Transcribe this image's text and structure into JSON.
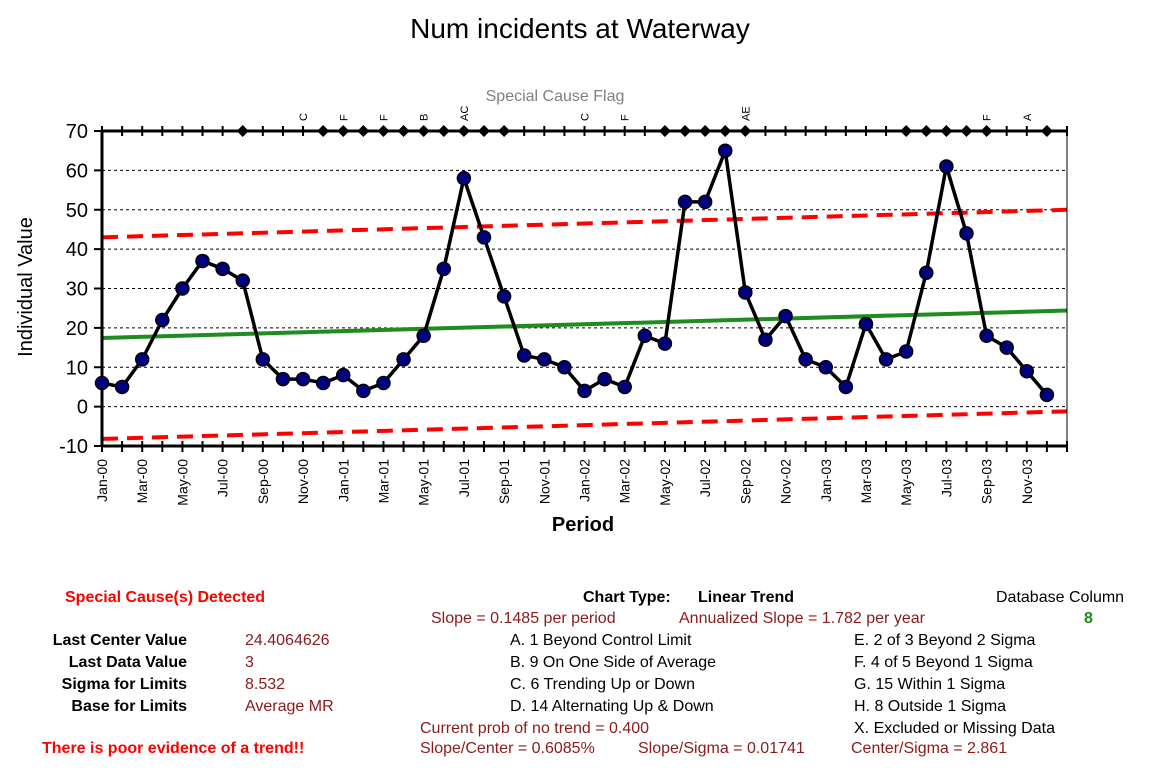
{
  "chart_data": {
    "type": "line",
    "title": "Num incidents at Waterway",
    "xlabel": "Period",
    "ylabel": "Individual Value",
    "flag_axis_label": "Special Cause Flag",
    "ylim": [
      -10,
      70
    ],
    "yticks": [
      -10,
      0,
      10,
      20,
      30,
      40,
      50,
      60,
      70
    ],
    "grid": true,
    "x_tick_labels": [
      "Jan-00",
      "Mar-00",
      "May-00",
      "Jul-00",
      "Sep-00",
      "Nov-00",
      "Jan-01",
      "Mar-01",
      "May-01",
      "Jul-01",
      "Sep-01",
      "Nov-01",
      "Jan-02",
      "Mar-02",
      "May-02",
      "Jul-02",
      "Sep-02",
      "Nov-02",
      "Jan-03",
      "Mar-03",
      "May-03",
      "Jul-03",
      "Sep-03",
      "Nov-03"
    ],
    "series": [
      {
        "name": "",
        "role": "individual-values",
        "color": "#000000",
        "marker_color": "#00007f",
        "values": [
          6,
          5,
          12,
          22,
          30,
          37,
          35,
          32,
          12,
          7,
          7,
          6,
          8,
          4,
          6,
          12,
          18,
          35,
          58,
          43,
          28,
          13,
          12,
          10,
          4,
          7,
          5,
          18,
          16,
          52,
          52,
          65,
          29,
          17,
          23,
          12,
          10,
          5,
          21,
          12,
          14,
          34,
          61,
          44,
          18,
          15,
          9,
          3
        ]
      },
      {
        "name": "",
        "role": "center-line",
        "color": "#1f8c1f",
        "start": 17.43,
        "end": 24.4064626
      },
      {
        "name": "",
        "role": "upper-control-limit",
        "color": "#ff0000",
        "start": 43.0,
        "end": 50.0
      },
      {
        "name": "",
        "role": "lower-control-limit",
        "color": "#ff0000",
        "start": -8.2,
        "end": -1.2
      }
    ],
    "special_cause_flags": [
      {
        "period": 5,
        "label": "C"
      },
      {
        "period": 6,
        "label": "F"
      },
      {
        "period": 7,
        "label": "F"
      },
      {
        "period": 8,
        "label": "B"
      },
      {
        "period": 9,
        "label": "AC"
      },
      {
        "period": 12,
        "label": "C"
      },
      {
        "period": 13,
        "label": "F"
      },
      {
        "period": 16,
        "label": "AE"
      },
      {
        "period": 22,
        "label": "F"
      },
      {
        "period": 23,
        "label": "A"
      }
    ],
    "flag_diamond_periods": [
      7,
      11,
      12,
      13,
      14,
      15,
      16,
      17,
      18,
      19,
      20,
      28,
      29,
      30,
      31,
      32,
      40,
      41,
      42,
      43,
      44,
      47
    ]
  },
  "info": {
    "special_cause_heading": "Special Cause(s) Detected",
    "rows": [
      {
        "label": "Last Center Value",
        "value": "24.4064626"
      },
      {
        "label": "Last Data Value",
        "value": "3"
      },
      {
        "label": "Sigma for Limits",
        "value": "8.532"
      },
      {
        "label": "Base for Limits",
        "value": "Average MR"
      }
    ],
    "trend_message": "There is poor evidence of a trend!!",
    "chart_type_label": "Chart Type:",
    "chart_type_value": "Linear Trend",
    "slope": "Slope = 0.1485 per period",
    "annualized_slope": "Annualized Slope = 1.782 per year",
    "rules_left": [
      "A.  1 Beyond Control Limit",
      "B.  9 On One Side of Average",
      "C.  6 Trending Up or Down",
      "D.  14 Alternating  Up & Down"
    ],
    "rules_right": [
      "E.   2 of 3 Beyond 2 Sigma",
      "F.   4 of 5 Beyond 1 Sigma",
      "G.   15 Within 1 Sigma",
      "H.   8 Outside 1 Sigma",
      "X.   Excluded or Missing Data"
    ],
    "prob_no_trend": "Current prob of no trend = 0.400",
    "slope_center": "Slope/Center = 0.6085%",
    "slope_sigma": "Slope/Sigma = 0.01741",
    "center_sigma": "Center/Sigma = 2.861",
    "database_column_label": "Database Column",
    "database_column_value": "8"
  }
}
